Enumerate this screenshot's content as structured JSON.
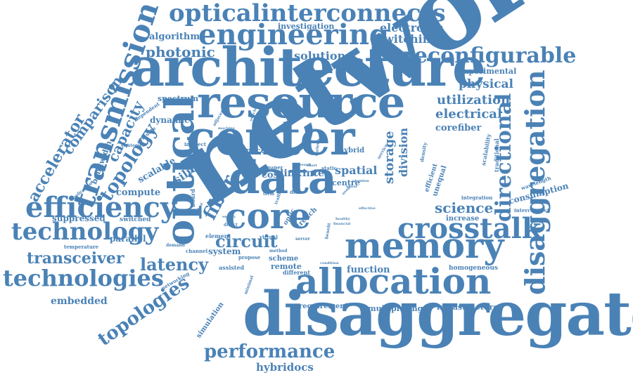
{
  "title": "Word cloud",
  "color": "#4a82b6",
  "words": {
    "network": "network",
    "disaggregated": "disaggregated",
    "architecture": "architecture",
    "resource": "resource",
    "center": "center",
    "data": "data",
    "core": "core",
    "memory": "memory",
    "allocation": "allocation",
    "optical": "optical",
    "engineering": "engineering",
    "opticalinterconnects": "opticalinterconnects",
    "transmission": "transmission",
    "efficiency": "efficiency",
    "technology": "technology",
    "crosstalk": "crosstalk",
    "disaggregation": "disaggregation",
    "directional": "directional",
    "reconfigurable": "reconfigurable",
    "technologies": "technologies",
    "transceiver": "transceiver",
    "topologies": "topologies",
    "performance": "performance",
    "topology": "topology",
    "latency": "latency",
    "fiber": "fiber",
    "circuit": "circuit",
    "electrical": "electrical",
    "physical": "physical",
    "utilization": "utilization",
    "science": "science",
    "accelerator": "accelerator",
    "comparison": "comparison",
    "capacity": "capacity",
    "photonic": "photonic",
    "solution": "solution",
    "switching": "switching",
    "electronic": "electronic",
    "investigation": "investigation",
    "algorithm": "algorithm",
    "spectrum": "spectrum",
    "experimental": "experimental",
    "corefiber": "corefiber",
    "storage": "storage",
    "division": "division",
    "spatial": "spatial",
    "inter": "inter",
    "link": "link",
    "cost": "cost",
    "silicon": "silicon",
    "scalable": "scalable",
    "compute": "compute",
    "parallel": "parallel",
    "suppressed": "suppressed",
    "switched": "switched",
    "embedded": "embedded",
    "hybridocs": "hybridocs",
    "function": "function",
    "remote": "remote",
    "different": "different",
    "scheme": "scheme",
    "system": "system",
    "multiplexing": "multiplexing",
    "infrastructure": "infrastructure",
    "requirement": "requirement",
    "homogeneous": "homogeneous",
    "increase": "increase",
    "consumption": "consumption",
    "interconnect": "interconnect",
    "integration": "integration",
    "unequal": "unequal",
    "efficient": "efficient",
    "dynamic": "dynamic",
    "bandwidth": "bandwidth",
    "centre": "centre",
    "hybrid": "hybrid",
    "space": "space",
    "power": "power",
    "indirect": "indirect",
    "evaluate": "evaluate",
    "strategies": "strategies",
    "dependent": "dependent",
    "adjacent": "adjacent",
    "machine": "machine",
    "application": "application",
    "temperature": "temperature",
    "networking": "networking",
    "simulation": "simulation",
    "assisted": "assisted",
    "propose": "propose",
    "element": "element",
    "channel": "channel",
    "demand": "demand",
    "virtual": "virtual",
    "method": "method",
    "server": "server",
    "condition": "condition",
    "minimal": "minimal",
    "trench": "trench",
    "optic": "optic",
    "benefit": "benefit",
    "financial": "financial",
    "healthy": "healthy",
    "effective": "effective",
    "dcns": "dcns",
    "term": "term",
    "traffic": "traffic",
    "static": "static",
    "paper": "paper",
    "scale": "scale",
    "board": "board",
    "control": "control",
    "direct": "direct",
    "energy": "energy",
    "traditional": "traditional",
    "scalability": "scalability",
    "wavelength": "wavelength",
    "density": "density",
    "service": "service",
    "various": "various",
    "result": "result",
    "adoption": "adoption",
    "equal": "equal",
    "usage": "usage",
    "short": "short",
    "switches": "switches",
    "various_small": "hold"
  }
}
